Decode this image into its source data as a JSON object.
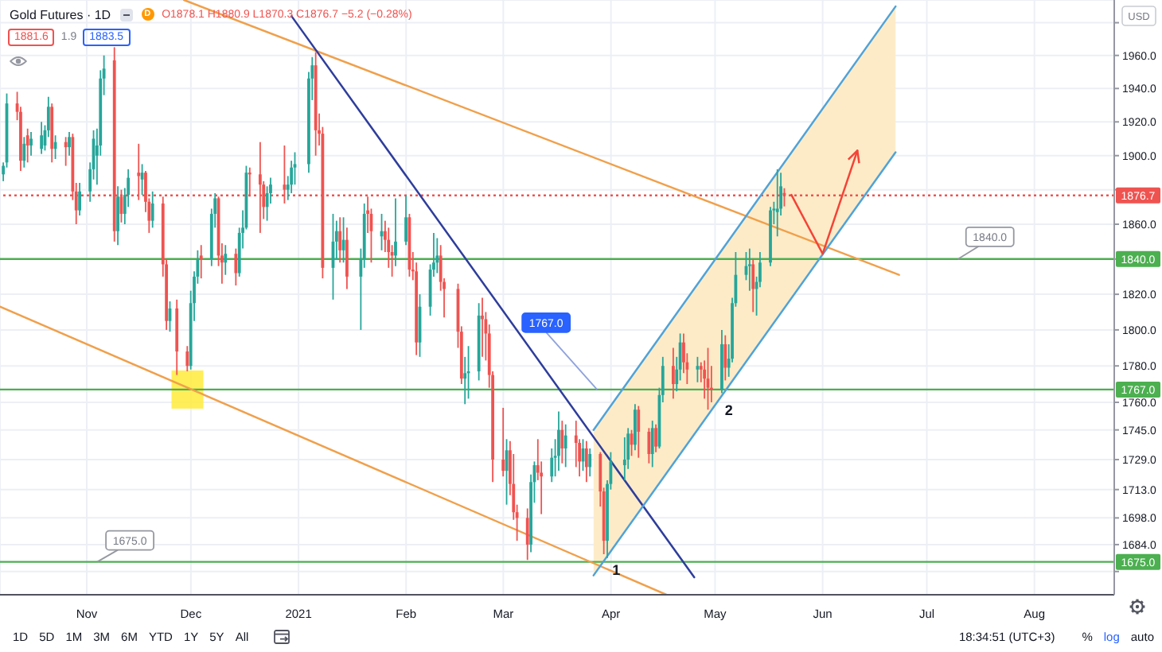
{
  "chart_data": {
    "type": "candlestick",
    "title": "Gold Futures · 1D",
    "ylabel": "USD",
    "log": true,
    "grid": true,
    "xlim": [
      "2020-10-07",
      "2021-08-24"
    ],
    "xticks": [
      {
        "value": "2020-11-01",
        "label": "Nov"
      },
      {
        "value": "2020-12-01",
        "label": "Dec"
      },
      "2021",
      {
        "value": "2021-02-01",
        "label": "Feb"
      },
      {
        "value": "2021-03-01",
        "label": "Mar"
      },
      {
        "value": "2021-04-01",
        "label": "Apr"
      },
      {
        "value": "2021-05-01",
        "label": "May"
      },
      {
        "value": "2021-06-01",
        "label": "Jun"
      },
      {
        "value": "2021-07-01",
        "label": "Jul"
      },
      {
        "value": "2021-08-01",
        "label": "Aug"
      }
    ],
    "ylim": [
      1658,
      1994
    ],
    "yticks": [
      {
        "value": 1980,
        "label": null
      },
      {
        "value": 1960,
        "label": "1960.0"
      },
      {
        "value": 1940,
        "label": "1940.0"
      },
      {
        "value": 1920,
        "label": "1920.0"
      },
      {
        "value": 1900,
        "label": "1900.0"
      },
      {
        "value": 1880,
        "label": null
      },
      {
        "value": 1860,
        "label": "1860.0"
      },
      {
        "value": 1840,
        "label": null
      },
      {
        "value": 1820,
        "label": "1820.0"
      },
      {
        "value": 1800,
        "label": "1800.0"
      },
      {
        "value": 1780,
        "label": "1780.0"
      },
      {
        "value": 1760,
        "label": "1760.0"
      },
      {
        "value": 1745,
        "label": "1745.0"
      },
      {
        "value": 1729,
        "label": "1729.0"
      },
      {
        "value": 1713,
        "label": "1713.0"
      },
      {
        "value": 1698,
        "label": "1698.0"
      },
      {
        "value": 1684,
        "label": "1684.0"
      },
      {
        "value": 1670,
        "label": null
      }
    ],
    "x": [
      "2020-10-08",
      "2020-10-09",
      "2020-10-12",
      "2020-10-13",
      "2020-10-14",
      "2020-10-15",
      "2020-10-16",
      "2020-10-19",
      "2020-10-20",
      "2020-10-21",
      "2020-10-22",
      "2020-10-23",
      "2020-10-26",
      "2020-10-27",
      "2020-10-28",
      "2020-10-29",
      "2020-10-30",
      "2020-11-02",
      "2020-11-03",
      "2020-11-04",
      "2020-11-05",
      "2020-11-06",
      "2020-11-09",
      "2020-11-10",
      "2020-11-11",
      "2020-11-12",
      "2020-11-13",
      "2020-11-16",
      "2020-11-17",
      "2020-11-18",
      "2020-11-19",
      "2020-11-20",
      "2020-11-23",
      "2020-11-24",
      "2020-11-25",
      "2020-11-27",
      "2020-11-30",
      "2020-12-01",
      "2020-12-02",
      "2020-12-03",
      "2020-12-04",
      "2020-12-07",
      "2020-12-08",
      "2020-12-09",
      "2020-12-10",
      "2020-12-11",
      "2020-12-14",
      "2020-12-15",
      "2020-12-16",
      "2020-12-17",
      "2020-12-18",
      "2020-12-21",
      "2020-12-22",
      "2020-12-23",
      "2020-12-24",
      "2020-12-28",
      "2020-12-29",
      "2020-12-30",
      "2020-12-31",
      "2021-01-04",
      "2021-01-05",
      "2021-01-06",
      "2021-01-07",
      "2021-01-08",
      "2021-01-11",
      "2021-01-12",
      "2021-01-13",
      "2021-01-14",
      "2021-01-15",
      "2021-01-19",
      "2021-01-20",
      "2021-01-21",
      "2021-01-22",
      "2021-01-25",
      "2021-01-26",
      "2021-01-27",
      "2021-01-28",
      "2021-01-29",
      "2021-02-01",
      "2021-02-02",
      "2021-02-03",
      "2021-02-04",
      "2021-02-05",
      "2021-02-08",
      "2021-02-09",
      "2021-02-10",
      "2021-02-11",
      "2021-02-12",
      "2021-02-16",
      "2021-02-17",
      "2021-02-18",
      "2021-02-19",
      "2021-02-22",
      "2021-02-23",
      "2021-02-24",
      "2021-02-25",
      "2021-02-26",
      "2021-03-01",
      "2021-03-02",
      "2021-03-03",
      "2021-03-04",
      "2021-03-05",
      "2021-03-08",
      "2021-03-09",
      "2021-03-10",
      "2021-03-11",
      "2021-03-12",
      "2021-03-15",
      "2021-03-16",
      "2021-03-17",
      "2021-03-18",
      "2021-03-19",
      "2021-03-22",
      "2021-03-23",
      "2021-03-24",
      "2021-03-25",
      "2021-03-26",
      "2021-03-29",
      "2021-03-30",
      "2021-03-31",
      "2021-04-01",
      "2021-04-05",
      "2021-04-06",
      "2021-04-07",
      "2021-04-08",
      "2021-04-09",
      "2021-04-12",
      "2021-04-13",
      "2021-04-14",
      "2021-04-15",
      "2021-04-16",
      "2021-04-19",
      "2021-04-20",
      "2021-04-21",
      "2021-04-22",
      "2021-04-23",
      "2021-04-26",
      "2021-04-27",
      "2021-04-28",
      "2021-04-29",
      "2021-04-30",
      "2021-05-03",
      "2021-05-04",
      "2021-05-05",
      "2021-05-06",
      "2021-05-07",
      "2021-05-10",
      "2021-05-11",
      "2021-05-12",
      "2021-05-13",
      "2021-05-14",
      "2021-05-17",
      "2021-05-18",
      "2021-05-19",
      "2021-05-20",
      "2021-05-21"
    ],
    "ohlc": [
      [
        1889,
        1896,
        1885,
        1894
      ],
      [
        1896,
        1937,
        1893,
        1931
      ],
      [
        1931,
        1938,
        1921,
        1926
      ],
      [
        1926,
        1929,
        1891,
        1897
      ],
      [
        1897,
        1911,
        1893,
        1907
      ],
      [
        1912,
        1916,
        1896,
        1906
      ],
      [
        1906,
        1914,
        1900,
        1910
      ],
      [
        1904,
        1920,
        1901,
        1912
      ],
      [
        1906,
        1918,
        1903,
        1915
      ],
      [
        1915,
        1935,
        1911,
        1929
      ],
      [
        1929,
        1931,
        1896,
        1904
      ],
      [
        1904,
        1912,
        1898,
        1908
      ],
      [
        1908,
        1911,
        1894,
        1905
      ],
      [
        1905,
        1914,
        1900,
        1911
      ],
      [
        1911,
        1913,
        1874,
        1879
      ],
      [
        1879,
        1884,
        1860,
        1868
      ],
      [
        1868,
        1884,
        1865,
        1879
      ],
      [
        1879,
        1896,
        1873,
        1892
      ],
      [
        1892,
        1915,
        1886,
        1910
      ],
      [
        1900,
        1916,
        1883,
        1906
      ],
      [
        1906,
        1951,
        1900,
        1946
      ],
      [
        1946,
        1960,
        1936,
        1952
      ],
      [
        1957,
        1965,
        1850,
        1856
      ],
      [
        1856,
        1882,
        1848,
        1876
      ],
      [
        1876,
        1880,
        1861,
        1866
      ],
      [
        1866,
        1881,
        1860,
        1877
      ],
      [
        1877,
        1892,
        1870,
        1887
      ],
      [
        1890,
        1907,
        1874,
        1888
      ],
      [
        1886,
        1895,
        1877,
        1890
      ],
      [
        1890,
        1891,
        1867,
        1873
      ],
      [
        1873,
        1875,
        1855,
        1862
      ],
      [
        1862,
        1879,
        1858,
        1872
      ],
      [
        1872,
        1876,
        1830,
        1837
      ],
      [
        1837,
        1840,
        1800,
        1805
      ],
      [
        1805,
        1816,
        1799,
        1812
      ],
      [
        1812,
        1817,
        1775,
        1788
      ],
      [
        1788,
        1791,
        1777,
        1780
      ],
      [
        1780,
        1822,
        1778,
        1815
      ],
      [
        1815,
        1833,
        1805,
        1830
      ],
      [
        1830,
        1845,
        1826,
        1840
      ],
      [
        1842,
        1848,
        1829,
        1840
      ],
      [
        1840,
        1869,
        1836,
        1866
      ],
      [
        1866,
        1878,
        1858,
        1875
      ],
      [
        1875,
        1876,
        1836,
        1842
      ],
      [
        1842,
        1849,
        1826,
        1838
      ],
      [
        1838,
        1848,
        1831,
        1843
      ],
      [
        1843,
        1846,
        1825,
        1832
      ],
      [
        1832,
        1858,
        1830,
        1855
      ],
      [
        1855,
        1868,
        1846,
        1858
      ],
      [
        1858,
        1894,
        1857,
        1890
      ],
      [
        1890,
        1893,
        1876,
        1889
      ],
      [
        1889,
        1908,
        1855,
        1883
      ],
      [
        1883,
        1885,
        1863,
        1870
      ],
      [
        1870,
        1882,
        1862,
        1878
      ],
      [
        1878,
        1887,
        1872,
        1883
      ],
      [
        1883,
        1906,
        1872,
        1880
      ],
      [
        1880,
        1888,
        1874,
        1883
      ],
      [
        1883,
        1897,
        1878,
        1893
      ],
      [
        1893,
        1902,
        1883,
        1895
      ],
      [
        1895,
        1950,
        1890,
        1946
      ],
      [
        1946,
        1959,
        1933,
        1954
      ],
      [
        1954,
        1962,
        1900,
        1915
      ],
      [
        1915,
        1925,
        1906,
        1913
      ],
      [
        1913,
        1917,
        1829,
        1835
      ],
      [
        1835,
        1866,
        1817,
        1850
      ],
      [
        1850,
        1862,
        1840,
        1856
      ],
      [
        1856,
        1864,
        1838,
        1845
      ],
      [
        1845,
        1864,
        1838,
        1851
      ],
      [
        1851,
        1858,
        1823,
        1830
      ],
      [
        1830,
        1846,
        1800,
        1840
      ],
      [
        1840,
        1872,
        1835,
        1866
      ],
      [
        1868,
        1876,
        1855,
        1866
      ],
      [
        1866,
        1869,
        1838,
        1856
      ],
      [
        1853,
        1866,
        1845,
        1856
      ],
      [
        1856,
        1862,
        1844,
        1851
      ],
      [
        1851,
        1858,
        1835,
        1844
      ],
      [
        1844,
        1848,
        1830,
        1842
      ],
      [
        1842,
        1875,
        1836,
        1850
      ],
      [
        1850,
        1877,
        1848,
        1864
      ],
      [
        1864,
        1866,
        1830,
        1834
      ],
      [
        1834,
        1844,
        1828,
        1833
      ],
      [
        1833,
        1838,
        1786,
        1793
      ],
      [
        1793,
        1820,
        1785,
        1813
      ],
      [
        1813,
        1837,
        1808,
        1834
      ],
      [
        1834,
        1855,
        1830,
        1838
      ],
      [
        1838,
        1852,
        1832,
        1842
      ],
      [
        1842,
        1848,
        1822,
        1827
      ],
      [
        1827,
        1829,
        1807,
        1823
      ],
      [
        1823,
        1826,
        1790,
        1799
      ],
      [
        1799,
        1802,
        1770,
        1773
      ],
      [
        1773,
        1785,
        1759,
        1776
      ],
      [
        1776,
        1791,
        1762,
        1777
      ],
      [
        1777,
        1815,
        1772,
        1808
      ],
      [
        1808,
        1818,
        1785,
        1806
      ],
      [
        1806,
        1810,
        1783,
        1798
      ],
      [
        1798,
        1803,
        1768,
        1775
      ],
      [
        1775,
        1777,
        1717,
        1729
      ],
      [
        1729,
        1757,
        1720,
        1723
      ],
      [
        1723,
        1740,
        1705,
        1734
      ],
      [
        1734,
        1739,
        1710,
        1716
      ],
      [
        1716,
        1732,
        1697,
        1701
      ],
      [
        1701,
        1705,
        1686,
        1698
      ],
      [
        1698,
        1703,
        1676,
        1684
      ],
      [
        1684,
        1721,
        1680,
        1717
      ],
      [
        1717,
        1728,
        1706,
        1726
      ],
      [
        1726,
        1740,
        1718,
        1722
      ],
      [
        1722,
        1728,
        1700,
        1720
      ],
      [
        1720,
        1735,
        1717,
        1730
      ],
      [
        1730,
        1740,
        1720,
        1731
      ],
      [
        1731,
        1755,
        1723,
        1745
      ],
      [
        1745,
        1750,
        1727,
        1735
      ],
      [
        1735,
        1748,
        1725,
        1742
      ],
      [
        1742,
        1750,
        1725,
        1738
      ],
      [
        1738,
        1740,
        1720,
        1728
      ],
      [
        1728,
        1740,
        1723,
        1735
      ],
      [
        1735,
        1739,
        1717,
        1725
      ],
      [
        1725,
        1735,
        1720,
        1732
      ],
      [
        1732,
        1733,
        1704,
        1712
      ],
      [
        1712,
        1714,
        1679,
        1686
      ],
      [
        1686,
        1718,
        1677,
        1716
      ],
      [
        1716,
        1733,
        1713,
        1728
      ],
      [
        1726,
        1741,
        1718,
        1729
      ],
      [
        1729,
        1746,
        1724,
        1743
      ],
      [
        1743,
        1745,
        1731,
        1737
      ],
      [
        1737,
        1759,
        1734,
        1756
      ],
      [
        1756,
        1758,
        1730,
        1744
      ],
      [
        1744,
        1746,
        1727,
        1732
      ],
      [
        1732,
        1750,
        1725,
        1746
      ],
      [
        1746,
        1748,
        1733,
        1736
      ],
      [
        1736,
        1768,
        1735,
        1764
      ],
      [
        1764,
        1785,
        1760,
        1780
      ],
      [
        1780,
        1790,
        1762,
        1770
      ],
      [
        1770,
        1785,
        1766,
        1778
      ],
      [
        1778,
        1798,
        1772,
        1793
      ],
      [
        1793,
        1798,
        1776,
        1782
      ],
      [
        1782,
        1787,
        1770,
        1778
      ],
      [
        1778,
        1785,
        1771,
        1780
      ],
      [
        1780,
        1782,
        1771,
        1778
      ],
      [
        1778,
        1783,
        1762,
        1773
      ],
      [
        1773,
        1790,
        1756,
        1768
      ],
      [
        1768,
        1780,
        1760,
        1767
      ],
      [
        1767,
        1800,
        1765,
        1792
      ],
      [
        1792,
        1797,
        1772,
        1779
      ],
      [
        1779,
        1792,
        1774,
        1784
      ],
      [
        1784,
        1818,
        1782,
        1815
      ],
      [
        1815,
        1844,
        1813,
        1831
      ],
      [
        1831,
        1844,
        1828,
        1836
      ],
      [
        1836,
        1846,
        1822,
        1837
      ],
      [
        1837,
        1840,
        1810,
        1823
      ],
      [
        1823,
        1830,
        1808,
        1827
      ],
      [
        1827,
        1844,
        1824,
        1838
      ],
      [
        1838,
        1870,
        1836,
        1868
      ],
      [
        1868,
        1873,
        1860,
        1869
      ],
      [
        1867,
        1892,
        1853,
        1869
      ],
      [
        1869,
        1890,
        1865,
        1882
      ],
      [
        1878.1,
        1880.9,
        1870.3,
        1876.7
      ]
    ],
    "colors": [
      "#26a69a",
      "#26a69a",
      "#ef5350",
      "#ef5350",
      "#26a69a",
      "#ef5350",
      "#26a69a",
      "#26a69a",
      "#26a69a",
      "#26a69a",
      "#ef5350",
      "#26a69a",
      "#ef5350",
      "#26a69a",
      "#ef5350",
      "#ef5350",
      "#26a69a",
      "#26a69a",
      "#26a69a",
      "#26a69a",
      "#26a69a",
      "#26a69a",
      "#ef5350",
      "#26a69a",
      "#ef5350",
      "#26a69a",
      "#26a69a",
      "#ef5350",
      "#26a69a",
      "#ef5350",
      "#ef5350",
      "#26a69a",
      "#ef5350",
      "#ef5350",
      "#26a69a",
      "#ef5350",
      "#ef5350",
      "#26a69a",
      "#26a69a",
      "#26a69a",
      "#ef5350",
      "#26a69a",
      "#26a69a",
      "#ef5350",
      "#ef5350",
      "#26a69a",
      "#ef5350",
      "#26a69a",
      "#26a69a",
      "#26a69a",
      "#ef5350",
      "#ef5350",
      "#ef5350",
      "#26a69a",
      "#26a69a",
      "#ef5350",
      "#26a69a",
      "#26a69a",
      "#26a69a",
      "#26a69a",
      "#26a69a",
      "#ef5350",
      "#ef5350",
      "#ef5350",
      "#26a69a",
      "#26a69a",
      "#ef5350",
      "#26a69a",
      "#ef5350",
      "#26a69a",
      "#26a69a",
      "#ef5350",
      "#ef5350",
      "#26a69a",
      "#ef5350",
      "#ef5350",
      "#ef5350",
      "#26a69a",
      "#26a69a",
      "#ef5350",
      "#ef5350",
      "#ef5350",
      "#26a69a",
      "#26a69a",
      "#26a69a",
      "#26a69a",
      "#ef5350",
      "#ef5350",
      "#ef5350",
      "#ef5350",
      "#26a69a",
      "#26a69a",
      "#26a69a",
      "#ef5350",
      "#ef5350",
      "#ef5350",
      "#ef5350",
      "#ef5350",
      "#26a69a",
      "#ef5350",
      "#ef5350",
      "#ef5350",
      "#ef5350",
      "#26a69a",
      "#26a69a",
      "#ef5350",
      "#ef5350",
      "#26a69a",
      "#26a69a",
      "#26a69a",
      "#ef5350",
      "#26a69a",
      "#ef5350",
      "#ef5350",
      "#26a69a",
      "#ef5350",
      "#26a69a",
      "#ef5350",
      "#ef5350",
      "#26a69a",
      "#26a69a",
      "#26a69a",
      "#26a69a",
      "#ef5350",
      "#26a69a",
      "#ef5350",
      "#ef5350",
      "#26a69a",
      "#ef5350",
      "#26a69a",
      "#26a69a",
      "#ef5350",
      "#26a69a",
      "#26a69a",
      "#ef5350",
      "#ef5350",
      "#26a69a",
      "#ef5350",
      "#ef5350",
      "#ef5350",
      "#ef5350",
      "#26a69a",
      "#ef5350",
      "#26a69a",
      "#26a69a",
      "#26a69a",
      "#26a69a",
      "#26a69a",
      "#ef5350",
      "#26a69a",
      "#26a69a",
      "#26a69a",
      "#26a69a",
      "#26a69a",
      "#26a69a",
      "#ef5350"
    ],
    "series": [
      {
        "type": "scatter",
        "x": [
          "2020-11-30"
        ],
        "values": [
          1767
        ],
        "color": "#ffeb3b",
        "marker": "square"
      },
      {
        "type": "line",
        "x": [
          "2020-11-29",
          "2021-06-23"
        ],
        "values": [
          1994,
          1831
        ],
        "color": "#f0a04b"
      },
      {
        "type": "line",
        "x": [
          "2020-10-07",
          "2021-04-17"
        ],
        "values": [
          1813,
          1658
        ],
        "color": "#f0a04b"
      },
      {
        "type": "line",
        "x": [
          "2020-12-30",
          "2021-04-25"
        ],
        "values": [
          1984,
          1667
        ],
        "color": "#2e3e9c"
      },
      {
        "type": "line",
        "x": [
          "2021-03-27",
          "2021-06-22"
        ],
        "values": [
          1745,
          1990
        ],
        "lower": [
          1668,
          1902
        ],
        "upper": [
          1745,
          1990
        ],
        "color": "#4fa3d8"
      },
      {
        "type": "line",
        "x": [
          "2021-03-27",
          "2021-06-22"
        ],
        "values": [
          1668,
          1902
        ],
        "color": "#4fa3d8"
      },
      {
        "type": "line",
        "x": [
          "2021-05-23",
          "2021-06-01",
          "2021-06-11"
        ],
        "values": [
          1877,
          1843,
          1903
        ],
        "color": "#f44336"
      }
    ],
    "ref_lines": [
      {
        "axis": "y",
        "value": 1876.7,
        "label": "1876.7",
        "color": "#ef5350",
        "line_style": "dotted"
      },
      {
        "axis": "y",
        "value": 1840,
        "label": "1840.0",
        "color": "#4caf50"
      },
      {
        "axis": "y",
        "value": 1767,
        "label": "1767.0",
        "color": "#4caf50"
      },
      {
        "axis": "y",
        "value": 1675,
        "label": "1675.0",
        "color": "#4caf50"
      }
    ],
    "annotations": [
      "D",
      "O1878.1 H1880.9 L1870.3 C1876.7 −5.2 (−0.28%)",
      "1881.6",
      "1.9",
      "1883.5",
      {
        "text": "1767.0",
        "x": "2021-03-28",
        "y": 1767
      },
      {
        "text": "1840.0",
        "x": "2021-07-10",
        "y": 1840
      },
      {
        "text": "1675.0",
        "x": "2020-11-04",
        "y": 1675
      },
      {
        "text": "1",
        "x": "2021-03-31",
        "y": 1677
      },
      {
        "text": "2",
        "x": "2021-04-29",
        "y": 1756
      },
      "1D",
      "5D",
      "1M",
      "3M",
      "6M",
      "YTD",
      "1Y",
      "5Y",
      "All",
      "18:34:51 (UTC+3)",
      "%",
      "log",
      "auto"
    ]
  }
}
